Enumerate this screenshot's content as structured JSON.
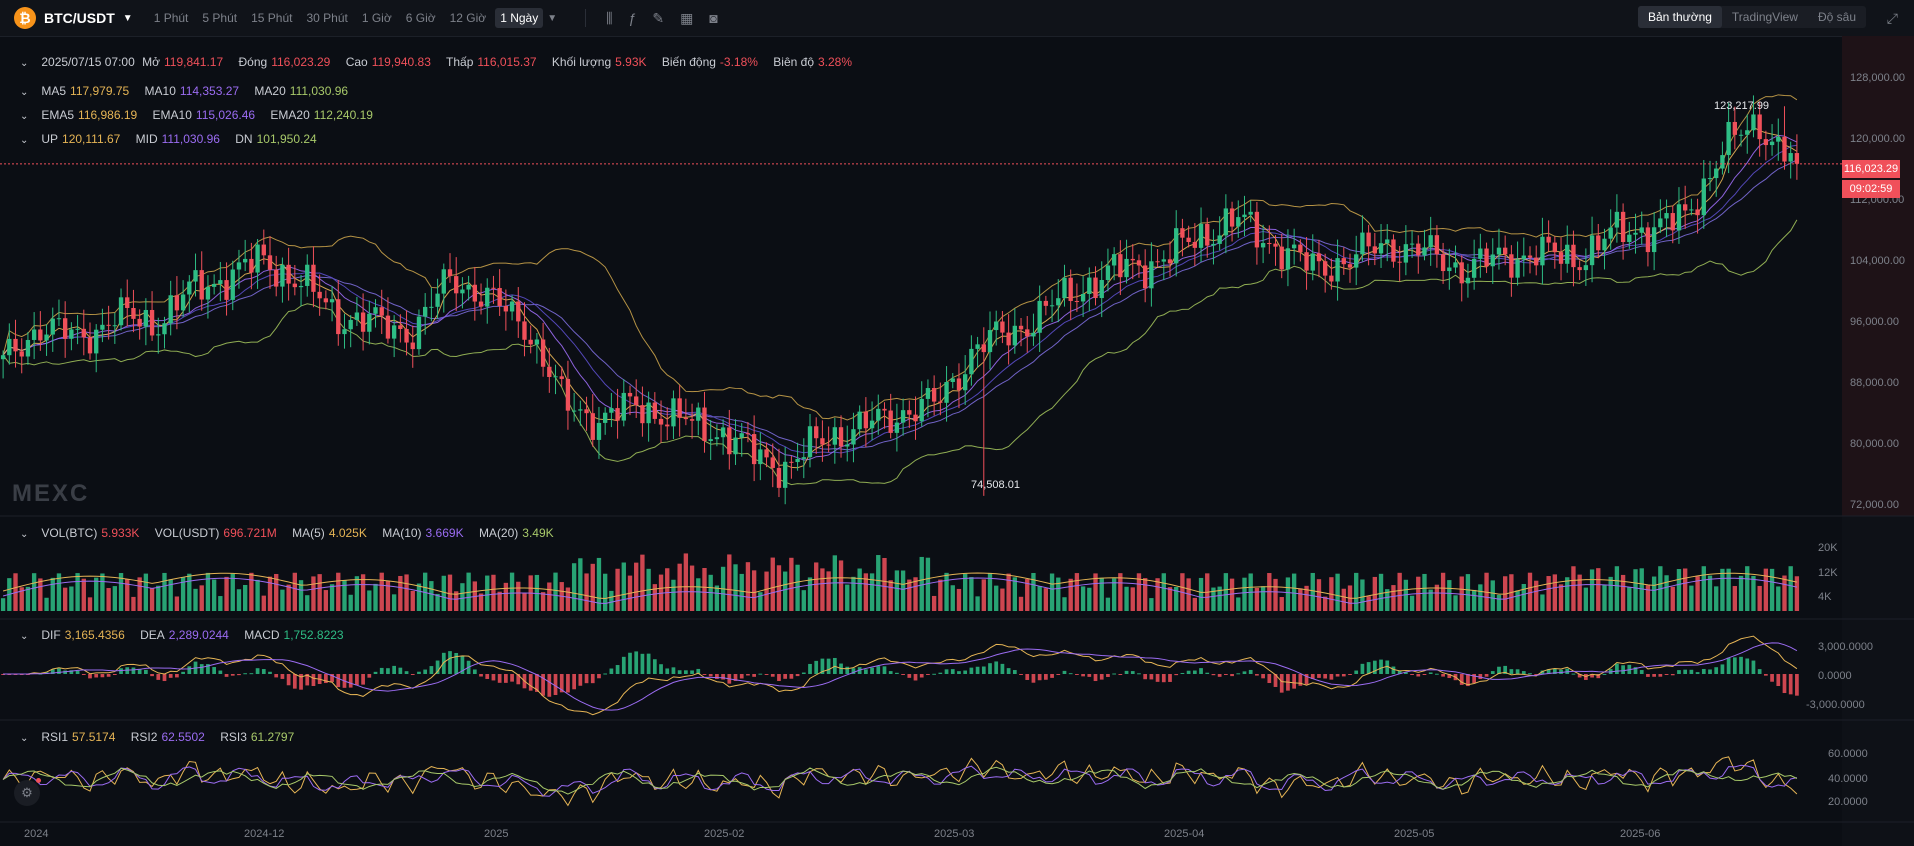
{
  "header": {
    "coin_symbol": "₿",
    "pair": "BTC/USDT",
    "intervals": [
      "1 Phút",
      "5 Phút",
      "15 Phút",
      "30 Phút",
      "1 Giờ",
      "6 Giờ",
      "12 Giờ"
    ],
    "active_interval": "1 Ngày",
    "views": [
      "Bản thường",
      "TradingView",
      "Độ sâu"
    ],
    "active_view": "Bản thường",
    "tool_icons": [
      "candle-type-icon",
      "indicator-icon",
      "draw-icon",
      "layout-icon",
      "camera-icon"
    ]
  },
  "ohlc": {
    "date": "2025/07/15 07:00",
    "open_label": "Mở",
    "open": "119,841.17",
    "close_label": "Đóng",
    "close": "116,023.29",
    "high_label": "Cao",
    "high": "119,940.83",
    "low_label": "Thấp",
    "low": "116,015.37",
    "volume_label": "Khối lượng",
    "volume": "5.93K",
    "change_label": "Biến động",
    "change": "-3.18%",
    "amplitude_label": "Biên độ",
    "amplitude": "3.28%"
  },
  "ma": {
    "ma5_label": "MA5",
    "ma5": "117,979.75",
    "ma10_label": "MA10",
    "ma10": "114,353.27",
    "ma20_label": "MA20",
    "ma20": "111,030.96"
  },
  "ema": {
    "ema5_label": "EMA5",
    "ema5": "116,986.19",
    "ema10_label": "EMA10",
    "ema10": "115,026.46",
    "ema20_label": "EMA20",
    "ema20": "112,240.19"
  },
  "boll": {
    "up_label": "UP",
    "up": "120,111.67",
    "mid_label": "MID",
    "mid": "111,030.96",
    "dn_label": "DN",
    "dn": "101,950.24"
  },
  "vol": {
    "vbtc_label": "VOL(BTC)",
    "vbtc": "5.933K",
    "vusdt_label": "VOL(USDT)",
    "vusdt": "696.721M",
    "ma5_label": "MA(5)",
    "ma5": "4.025K",
    "ma10_label": "MA(10)",
    "ma10": "3.669K",
    "ma20_label": "MA(20)",
    "ma20": "3.49K"
  },
  "macd": {
    "dif_label": "DIF",
    "dif": "3,165.4356",
    "dea_label": "DEA",
    "dea": "2,289.0244",
    "macd_label": "MACD",
    "macd": "1,752.8223"
  },
  "rsi": {
    "rsi1_label": "RSI1",
    "rsi1": "57.5174",
    "rsi2_label": "RSI2",
    "rsi2": "62.5502",
    "rsi3_label": "RSI3",
    "rsi3": "61.2797"
  },
  "price_axis": [
    "128,000.00",
    "120,000.00",
    "112,000.00",
    "104,000.00",
    "96,000.00",
    "88,000.00",
    "80,000.00",
    "72,000.00"
  ],
  "vol_axis": [
    "20K",
    "12K",
    "4K"
  ],
  "macd_axis": [
    "3,000.0000",
    "0.0000",
    "-3,000.0000"
  ],
  "rsi_axis": [
    "60.0000",
    "40.0000",
    "20.0000"
  ],
  "x_axis": [
    "2024",
    "2024-12",
    "2025",
    "2025-02",
    "2025-03",
    "2025-04",
    "2025-05",
    "2025-06"
  ],
  "current_price": "116,023.29",
  "countdown": "09:02:59",
  "high_annotation": "123,217.99",
  "low_annotation": "74,508.01",
  "watermark": "MEXC",
  "colors": {
    "up": "#2ebd85",
    "down": "#f0505a",
    "ma5": "#e5b455",
    "ma10": "#9b6cf2",
    "ma20": "#a8c96a"
  },
  "chart_data": {
    "type": "candlestick",
    "x": [
      "2024",
      "2024-12",
      "2025",
      "2025-02",
      "2025-03",
      "2025-04",
      "2025-05",
      "2025-06"
    ],
    "price_range": [
      72000,
      132000
    ],
    "approx_closes": [
      91000,
      96000,
      94000,
      97000,
      96000,
      100000,
      102000,
      104000,
      101000,
      97000,
      96000,
      95000,
      102000,
      99000,
      96000,
      86000,
      84000,
      86000,
      84000,
      83000,
      80000,
      78000,
      82000,
      83000,
      85000,
      86000,
      93000,
      95000,
      98000,
      101000,
      103000,
      104000,
      107000,
      109000,
      106000,
      103000,
      104000,
      106000,
      105000,
      103000,
      104000,
      105000,
      104000,
      107000,
      108000,
      109000,
      118000,
      121000,
      116023
    ]
  }
}
